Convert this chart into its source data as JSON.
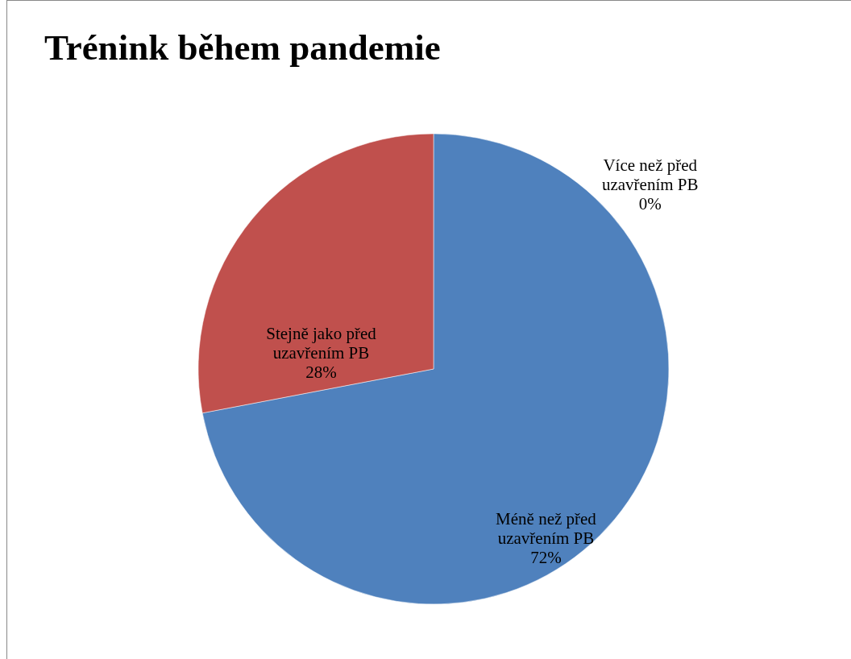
{
  "chart_data": {
    "type": "pie",
    "title": "Trénink během pandemie",
    "categories": [
      "Více než před uzavřením PB",
      "Méně než před uzavřením PB",
      "Stejně jako před uzavřením PB"
    ],
    "values": [
      0,
      72,
      28
    ],
    "colors": [
      "#9bbb59",
      "#4f81bd",
      "#c0504d"
    ],
    "value_labels": [
      "0%",
      "72%",
      "28%"
    ],
    "legend": false
  }
}
